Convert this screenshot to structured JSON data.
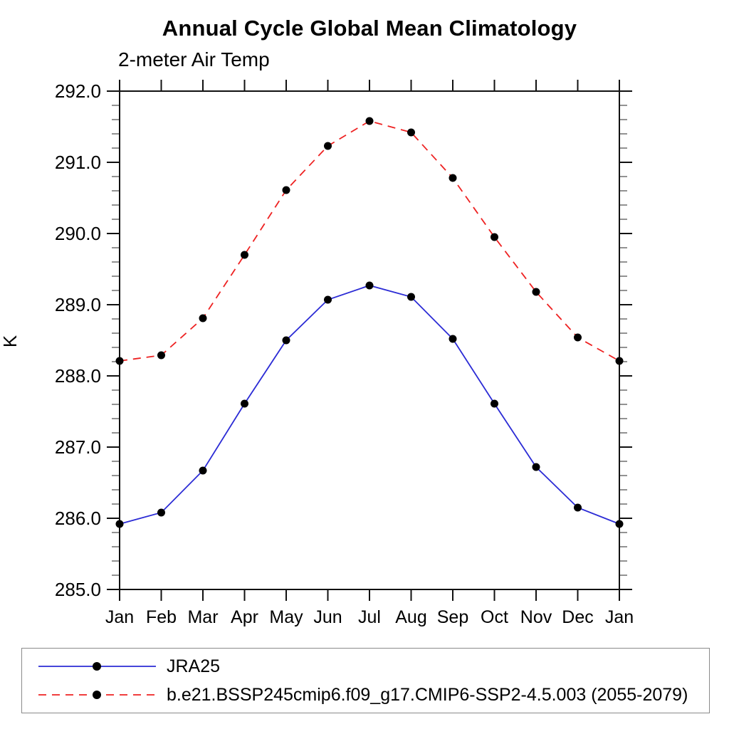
{
  "chart_data": {
    "type": "line",
    "title": "Annual Cycle Global Mean Climatology",
    "subtitle": "2-meter Air Temp",
    "ylabel": "K",
    "xlabel": "",
    "x_categories": [
      "Jan",
      "Feb",
      "Mar",
      "Apr",
      "May",
      "Jun",
      "Jul",
      "Aug",
      "Sep",
      "Oct",
      "Nov",
      "Dec",
      "Jan"
    ],
    "ylim": [
      285.0,
      292.0
    ],
    "y_major_tick_labels": [
      "285.0",
      "286.0",
      "287.0",
      "288.0",
      "289.0",
      "290.0",
      "291.0",
      "292.0"
    ],
    "y_major_step": 1.0,
    "y_minor_step": 0.2,
    "grid": false,
    "legend_position": "bottom-left-box",
    "series": [
      {
        "name": "JRA25",
        "color": "#2b2bd5",
        "line_style": "solid",
        "marker": "filled-circle",
        "marker_color": "#000000",
        "values": [
          285.92,
          286.08,
          286.67,
          287.61,
          288.5,
          289.07,
          289.27,
          289.11,
          288.52,
          287.61,
          286.72,
          286.15,
          285.92
        ]
      },
      {
        "name": "b.e21.BSSP245cmip6.f09_g17.CMIP6-SSP2-4.5.003 (2055-2079)",
        "color": "#ee2222",
        "line_style": "dashed",
        "marker": "filled-circle",
        "marker_color": "#000000",
        "values": [
          288.21,
          288.29,
          288.81,
          289.7,
          290.61,
          291.23,
          291.58,
          291.42,
          290.78,
          289.95,
          289.18,
          288.54,
          288.21
        ]
      }
    ]
  }
}
